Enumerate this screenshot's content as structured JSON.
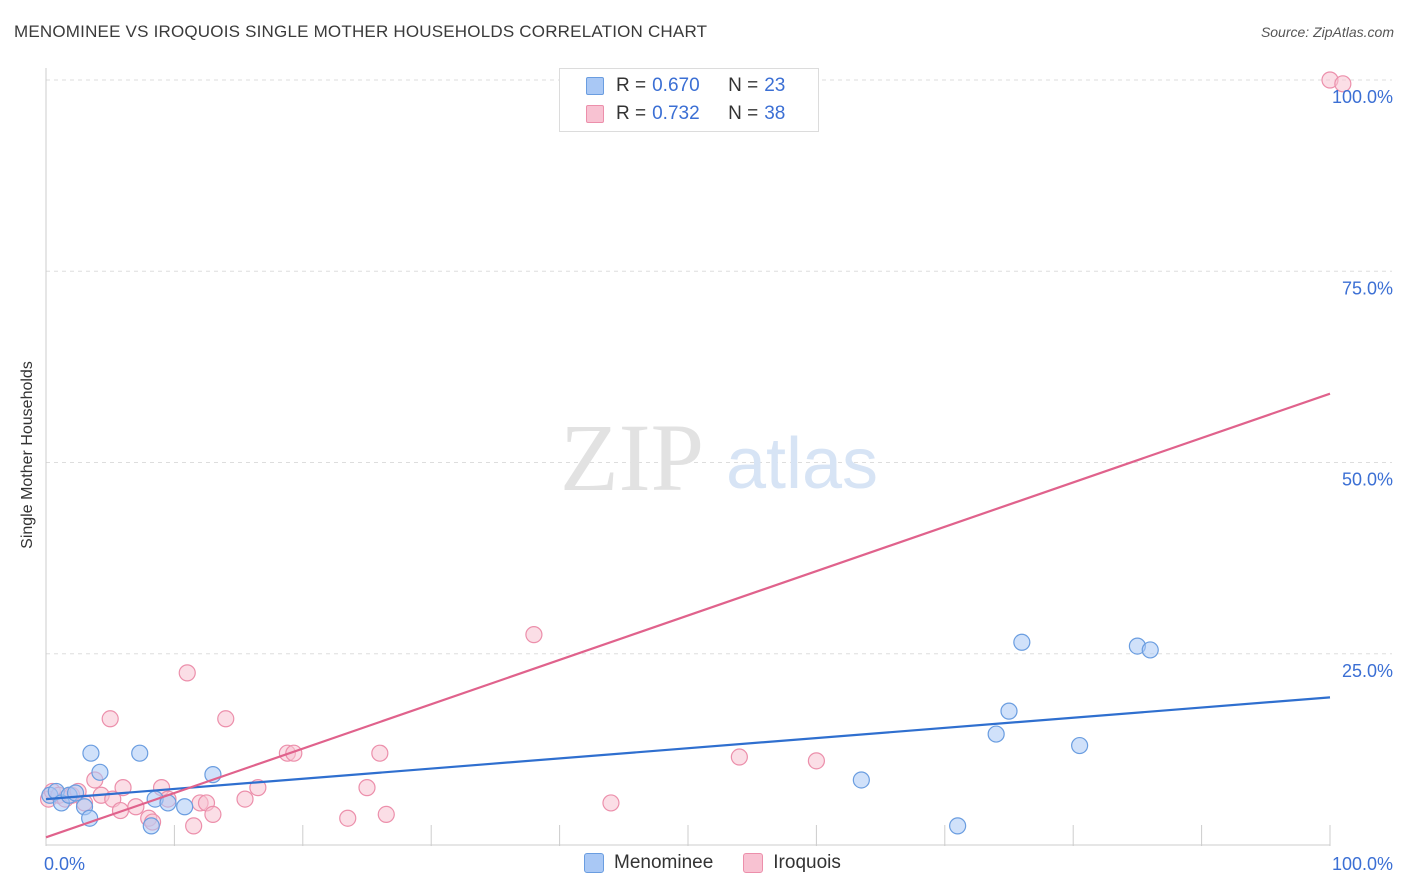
{
  "title": "MENOMINEE VS IROQUOIS SINGLE MOTHER HOUSEHOLDS CORRELATION CHART",
  "source": "Source: ZipAtlas.com",
  "watermark": {
    "zip": "ZIP",
    "atlas": "atlas"
  },
  "colors": {
    "menominee_fill": "#a9c8f5",
    "menominee_stroke": "#6a9de0",
    "menominee_line": "#2f6fcf",
    "iroquois_fill": "#f8c2d2",
    "iroquois_stroke": "#ec8fab",
    "iroquois_line": "#e0628c",
    "axis_label": "#3b6fd4",
    "grid": "#dddddd"
  },
  "legend": {
    "rows": [
      {
        "r_label": "R =",
        "r_value": "0.670",
        "n_label": "N =",
        "n_value": "23"
      },
      {
        "r_label": "R =",
        "r_value": "0.732",
        "n_label": "N =",
        "n_value": "38"
      }
    ]
  },
  "bottom_legend": {
    "menominee": "Menominee",
    "iroquois": "Iroquois"
  },
  "chart_data": {
    "type": "scatter",
    "title": "MENOMINEE VS IROQUOIS SINGLE MOTHER HOUSEHOLDS CORRELATION CHART",
    "xlabel": "",
    "ylabel": "Single Mother Households",
    "xlim": [
      0,
      100
    ],
    "ylim": [
      0,
      100
    ],
    "x_tick_labels": [
      {
        "value": 0,
        "label": "0.0%"
      },
      {
        "value": 100,
        "label": "100.0%"
      }
    ],
    "y_tick_labels": [
      {
        "value": 25,
        "label": "25.0%"
      },
      {
        "value": 50,
        "label": "50.0%"
      },
      {
        "value": 75,
        "label": "75.0%"
      },
      {
        "value": 100,
        "label": "100.0%"
      }
    ],
    "series": [
      {
        "name": "Menominee",
        "points": [
          [
            0.3,
            6.5
          ],
          [
            0.8,
            7.0
          ],
          [
            1.2,
            5.5
          ],
          [
            1.8,
            6.5
          ],
          [
            2.3,
            6.8
          ],
          [
            3.0,
            5.0
          ],
          [
            3.4,
            3.5
          ],
          [
            3.5,
            12.0
          ],
          [
            4.2,
            9.5
          ],
          [
            7.3,
            12.0
          ],
          [
            8.2,
            2.5
          ],
          [
            8.5,
            6.0
          ],
          [
            9.5,
            5.5
          ],
          [
            10.8,
            5.0
          ],
          [
            13.0,
            9.2
          ],
          [
            63.5,
            8.5
          ],
          [
            71.0,
            2.5
          ],
          [
            74.0,
            14.5
          ],
          [
            75.0,
            17.5
          ],
          [
            76.0,
            26.5
          ],
          [
            80.5,
            13.0
          ],
          [
            85.0,
            26.0
          ],
          [
            86.0,
            25.5
          ]
        ],
        "trend": {
          "x": [
            0,
            100
          ],
          "y": [
            6.0,
            19.3
          ]
        }
      },
      {
        "name": "Iroquois",
        "points": [
          [
            0.2,
            6.0
          ],
          [
            0.5,
            7.0
          ],
          [
            1.0,
            6.5
          ],
          [
            1.5,
            6.0
          ],
          [
            2.0,
            6.5
          ],
          [
            2.5,
            7.0
          ],
          [
            3.0,
            5.5
          ],
          [
            3.8,
            8.5
          ],
          [
            4.3,
            6.5
          ],
          [
            5.0,
            16.5
          ],
          [
            5.2,
            6.0
          ],
          [
            5.8,
            4.5
          ],
          [
            6.0,
            7.5
          ],
          [
            7.0,
            5.0
          ],
          [
            8.0,
            3.5
          ],
          [
            8.3,
            3.0
          ],
          [
            9.0,
            7.5
          ],
          [
            9.5,
            6.0
          ],
          [
            11.0,
            22.5
          ],
          [
            11.5,
            2.5
          ],
          [
            12.0,
            5.5
          ],
          [
            12.5,
            5.5
          ],
          [
            13.0,
            4.0
          ],
          [
            14.0,
            16.5
          ],
          [
            15.5,
            6.0
          ],
          [
            16.5,
            7.5
          ],
          [
            18.8,
            12.0
          ],
          [
            19.3,
            12.0
          ],
          [
            23.5,
            3.5
          ],
          [
            25.0,
            7.5
          ],
          [
            26.0,
            12.0
          ],
          [
            26.5,
            4.0
          ],
          [
            38.0,
            27.5
          ],
          [
            44.0,
            5.5
          ],
          [
            54.0,
            11.5
          ],
          [
            60.0,
            11.0
          ],
          [
            100.0,
            100.0
          ],
          [
            101.0,
            99.5
          ]
        ],
        "trend": {
          "x": [
            0,
            100
          ],
          "y": [
            1.0,
            59.0
          ]
        }
      }
    ]
  }
}
